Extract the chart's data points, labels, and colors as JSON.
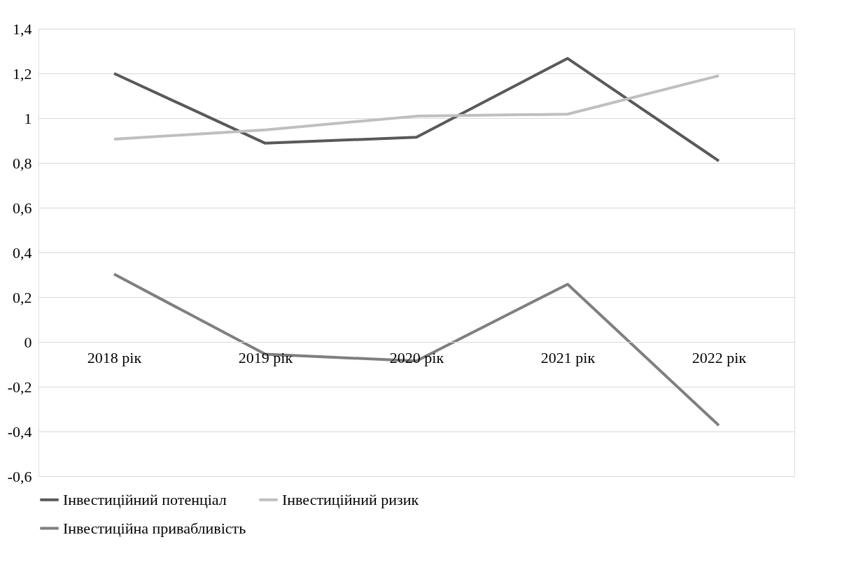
{
  "chart_data": {
    "type": "line",
    "categories": [
      "2018 рік",
      "2019 рік",
      "2020 рік",
      "2021 рік",
      "2022 рік"
    ],
    "series": [
      {
        "name": "Інвестиційний потенціал",
        "color": "#595959",
        "values": [
          1.2,
          0.888,
          0.915,
          1.267,
          0.809
        ]
      },
      {
        "name": "Інвестиційний ризик",
        "color": "#bfbfbf",
        "values": [
          0.906,
          0.948,
          1.009,
          1.018,
          1.19
        ]
      },
      {
        "name": "Інвестиційна привабливість",
        "color": "#7f7f7f",
        "values": [
          0.303,
          -0.055,
          -0.085,
          0.258,
          -0.373
        ]
      }
    ],
    "ylim": [
      -0.6,
      1.4
    ],
    "yticks": [
      {
        "value": -0.6,
        "label": "-0,6"
      },
      {
        "value": -0.4,
        "label": "-0,4"
      },
      {
        "value": -0.2,
        "label": "-0,2"
      },
      {
        "value": 0,
        "label": "0"
      },
      {
        "value": 0.2,
        "label": "0,2"
      },
      {
        "value": 0.4,
        "label": "0,4"
      },
      {
        "value": 0.6,
        "label": "0,6"
      },
      {
        "value": 0.8,
        "label": "0,8"
      },
      {
        "value": 1,
        "label": "1"
      },
      {
        "value": 1.2,
        "label": "1,2"
      },
      {
        "value": 1.4,
        "label": "1,4"
      }
    ],
    "grid": "y",
    "legend": "bottom",
    "marker": "none",
    "line_style": "solid"
  }
}
